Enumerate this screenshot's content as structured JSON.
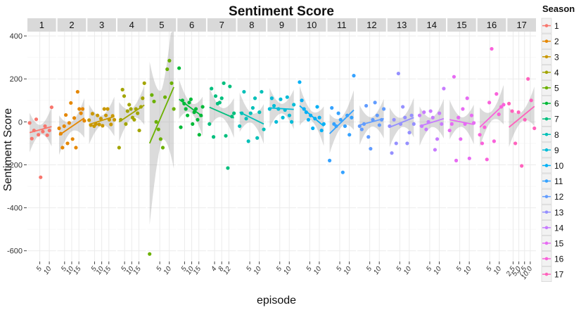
{
  "chart_data": {
    "type": "scatter",
    "title": "Sentiment Score",
    "xlabel": "episode",
    "ylabel": "Sentiment Score",
    "ylim": [
      -650,
      420
    ],
    "y_ticks": [
      400,
      200,
      0,
      -200,
      -400,
      -600
    ],
    "grid": true,
    "legend": {
      "title": "Season",
      "placement": "right"
    },
    "panels": [
      {
        "season": "1",
        "color": "#F8766D",
        "xlim": [
          0,
          13
        ],
        "x_ticks": [
          "5",
          "10"
        ],
        "points": [
          [
            1,
            -5
          ],
          [
            2,
            -78
          ],
          [
            3,
            -40
          ],
          [
            4,
            12
          ],
          [
            5,
            -60
          ],
          [
            6,
            -258
          ],
          [
            7,
            -45
          ],
          [
            8,
            -20
          ],
          [
            9,
            -62
          ],
          [
            10,
            -40
          ],
          [
            11,
            68
          ]
        ],
        "trend": [
          [
            1,
            -50
          ],
          [
            11,
            -22
          ]
        ]
      },
      {
        "season": "2",
        "color": "#E58700",
        "xlim": [
          0,
          17
        ],
        "x_ticks": [
          "5",
          "10",
          "15"
        ],
        "points": [
          [
            1,
            -30
          ],
          [
            2,
            -55
          ],
          [
            3,
            -120
          ],
          [
            4,
            -20
          ],
          [
            5,
            32
          ],
          [
            6,
            -100
          ],
          [
            7,
            -5
          ],
          [
            8,
            88
          ],
          [
            9,
            -80
          ],
          [
            10,
            18
          ],
          [
            11,
            -120
          ],
          [
            12,
            140
          ],
          [
            13,
            60
          ],
          [
            14,
            40
          ],
          [
            15,
            60
          ],
          [
            16,
            5
          ]
        ],
        "trend": [
          [
            1,
            -62
          ],
          [
            16,
            18
          ]
        ]
      },
      {
        "season": "3",
        "color": "#C99800",
        "xlim": [
          0,
          17
        ],
        "x_ticks": [
          "5",
          "10",
          "15"
        ],
        "points": [
          [
            1,
            8
          ],
          [
            2,
            -15
          ],
          [
            3,
            38
          ],
          [
            4,
            -20
          ],
          [
            5,
            -10
          ],
          [
            6,
            30
          ],
          [
            7,
            -12
          ],
          [
            8,
            15
          ],
          [
            9,
            -18
          ],
          [
            10,
            60
          ],
          [
            11,
            30
          ],
          [
            12,
            60
          ],
          [
            13,
            10
          ],
          [
            14,
            -12
          ],
          [
            15,
            28
          ],
          [
            16,
            10
          ]
        ],
        "trend": [
          [
            1,
            -12
          ],
          [
            16,
            25
          ]
        ]
      },
      {
        "season": "4",
        "color": "#A3A500",
        "xlim": [
          0,
          17
        ],
        "x_ticks": [
          "5",
          "10",
          "15"
        ],
        "points": [
          [
            1,
            -120
          ],
          [
            2,
            10
          ],
          [
            3,
            150
          ],
          [
            4,
            120
          ],
          [
            5,
            -10
          ],
          [
            6,
            50
          ],
          [
            7,
            80
          ],
          [
            8,
            60
          ],
          [
            9,
            20
          ],
          [
            10,
            10
          ],
          [
            11,
            60
          ],
          [
            12,
            40
          ],
          [
            13,
            -40
          ],
          [
            14,
            70
          ],
          [
            15,
            110
          ],
          [
            16,
            180
          ]
        ],
        "trend": [
          [
            1,
            0
          ],
          [
            16,
            78
          ]
        ]
      },
      {
        "season": "5",
        "color": "#6BB100",
        "xlim": [
          0,
          13
        ],
        "x_ticks": [
          "5",
          "10"
        ],
        "points": [
          [
            1,
            -615
          ],
          [
            2,
            125
          ],
          [
            3,
            95
          ],
          [
            4,
            0
          ],
          [
            5,
            -35
          ],
          [
            6,
            -80
          ],
          [
            7,
            -120
          ],
          [
            8,
            115
          ],
          [
            9,
            245
          ],
          [
            10,
            285
          ],
          [
            11,
            180
          ],
          [
            12,
            60
          ]
        ],
        "trend": [
          [
            1,
            -100
          ],
          [
            12,
            162
          ]
        ]
      },
      {
        "season": "6",
        "color": "#00BA38",
        "xlim": [
          0,
          17
        ],
        "x_ticks": [
          "5",
          "10",
          "15"
        ],
        "points": [
          [
            1,
            250
          ],
          [
            2,
            -25
          ],
          [
            3,
            100
          ],
          [
            4,
            85
          ],
          [
            5,
            60
          ],
          [
            6,
            30
          ],
          [
            7,
            90
          ],
          [
            8,
            105
          ],
          [
            9,
            -10
          ],
          [
            10,
            45
          ],
          [
            11,
            60
          ],
          [
            12,
            10
          ],
          [
            13,
            -60
          ],
          [
            14,
            30
          ],
          [
            15,
            70
          ]
        ],
        "trend": [
          [
            1,
            105
          ],
          [
            15,
            25
          ]
        ]
      },
      {
        "season": "7",
        "color": "#00BF7D",
        "xlim": [
          0,
          14
        ],
        "x_ticks": [
          "4",
          "8",
          "12"
        ],
        "points": [
          [
            1,
            -10
          ],
          [
            2,
            155
          ],
          [
            3,
            -70
          ],
          [
            4,
            120
          ],
          [
            5,
            85
          ],
          [
            6,
            90
          ],
          [
            7,
            110
          ],
          [
            8,
            180
          ],
          [
            9,
            -65
          ],
          [
            10,
            -215
          ],
          [
            11,
            165
          ],
          [
            12,
            25
          ],
          [
            13,
            40
          ]
        ],
        "trend": [
          [
            1,
            68
          ],
          [
            13,
            18
          ]
        ]
      },
      {
        "season": "8",
        "color": "#00C0B8",
        "xlim": [
          0,
          13
        ],
        "x_ticks": [
          "5",
          "10"
        ],
        "points": [
          [
            1,
            -20
          ],
          [
            2,
            40
          ],
          [
            3,
            140
          ],
          [
            4,
            15
          ],
          [
            5,
            -90
          ],
          [
            6,
            40
          ],
          [
            7,
            65
          ],
          [
            8,
            110
          ],
          [
            9,
            -75
          ],
          [
            10,
            45
          ],
          [
            11,
            140
          ],
          [
            12,
            -35
          ]
        ],
        "trend": [
          [
            1,
            45
          ],
          [
            12,
            -10
          ]
        ]
      },
      {
        "season": "9",
        "color": "#00BCD8",
        "xlim": [
          0,
          13
        ],
        "x_ticks": [
          "5",
          "10"
        ],
        "points": [
          [
            1,
            60
          ],
          [
            2,
            110
          ],
          [
            3,
            75
          ],
          [
            4,
            0
          ],
          [
            5,
            60
          ],
          [
            6,
            105
          ],
          [
            7,
            20
          ],
          [
            8,
            55
          ],
          [
            9,
            115
          ],
          [
            10,
            30
          ],
          [
            11,
            0
          ],
          [
            12,
            80
          ]
        ],
        "trend": [
          [
            1,
            65
          ],
          [
            12,
            58
          ]
        ]
      },
      {
        "season": "10",
        "color": "#00B0F6",
        "xlim": [
          0,
          13
        ],
        "x_ticks": [
          "5",
          "10"
        ],
        "points": [
          [
            1,
            185
          ],
          [
            2,
            100
          ],
          [
            3,
            60
          ],
          [
            4,
            45
          ],
          [
            5,
            10
          ],
          [
            6,
            30
          ],
          [
            7,
            -30
          ],
          [
            8,
            15
          ],
          [
            9,
            70
          ],
          [
            10,
            20
          ],
          [
            11,
            -40
          ],
          [
            12,
            -10
          ]
        ],
        "trend": [
          [
            1,
            75
          ],
          [
            12,
            -20
          ]
        ]
      },
      {
        "season": "11",
        "color": "#35A2FF",
        "xlim": [
          0,
          13
        ],
        "x_ticks": [
          "5",
          "10"
        ],
        "points": [
          [
            1,
            -180
          ],
          [
            2,
            65
          ],
          [
            3,
            -10
          ],
          [
            4,
            -20
          ],
          [
            5,
            40
          ],
          [
            6,
            10
          ],
          [
            7,
            -235
          ],
          [
            8,
            -20
          ],
          [
            9,
            30
          ],
          [
            10,
            -60
          ],
          [
            11,
            20
          ],
          [
            12,
            215
          ]
        ],
        "trend": [
          [
            1,
            -55
          ],
          [
            12,
            55
          ]
        ]
      },
      {
        "season": "12",
        "color": "#619CFF",
        "xlim": [
          0,
          13
        ],
        "x_ticks": [
          "5",
          "10"
        ],
        "points": [
          [
            1,
            -20
          ],
          [
            2,
            -35
          ],
          [
            3,
            -10
          ],
          [
            4,
            75
          ],
          [
            5,
            -70
          ],
          [
            6,
            -125
          ],
          [
            7,
            10
          ],
          [
            8,
            90
          ],
          [
            9,
            30
          ],
          [
            10,
            -15
          ],
          [
            11,
            10
          ],
          [
            12,
            60
          ]
        ],
        "trend": [
          [
            1,
            -15
          ],
          [
            12,
            15
          ]
        ]
      },
      {
        "season": "13",
        "color": "#9590FF",
        "xlim": [
          0,
          13
        ],
        "x_ticks": [
          "5",
          "10"
        ],
        "points": [
          [
            1,
            -20
          ],
          [
            2,
            -145
          ],
          [
            3,
            10
          ],
          [
            4,
            -100
          ],
          [
            5,
            225
          ],
          [
            6,
            -10
          ],
          [
            7,
            70
          ],
          [
            8,
            20
          ],
          [
            9,
            -100
          ],
          [
            10,
            -50
          ],
          [
            11,
            30
          ],
          [
            12,
            -10
          ]
        ],
        "trend": [
          [
            1,
            -25
          ],
          [
            12,
            20
          ]
        ]
      },
      {
        "season": "14",
        "color": "#C77CFF",
        "xlim": [
          0,
          13
        ],
        "x_ticks": [
          "5",
          "10"
        ],
        "points": [
          [
            1,
            30
          ],
          [
            2,
            -20
          ],
          [
            3,
            45
          ],
          [
            4,
            -35
          ],
          [
            5,
            0
          ],
          [
            6,
            50
          ],
          [
            7,
            20
          ],
          [
            8,
            -130
          ],
          [
            9,
            -80
          ],
          [
            10,
            40
          ],
          [
            11,
            -10
          ],
          [
            12,
            155
          ]
        ],
        "trend": [
          [
            1,
            -20
          ],
          [
            12,
            15
          ]
        ]
      },
      {
        "season": "15",
        "color": "#E76BF3",
        "xlim": [
          0,
          13
        ],
        "x_ticks": [
          "5",
          "10"
        ],
        "points": [
          [
            1,
            -40
          ],
          [
            2,
            -10
          ],
          [
            3,
            210
          ],
          [
            4,
            -180
          ],
          [
            5,
            20
          ],
          [
            6,
            -80
          ],
          [
            7,
            60
          ],
          [
            8,
            -10
          ],
          [
            9,
            110
          ],
          [
            10,
            -170
          ],
          [
            11,
            30
          ],
          [
            12,
            -5
          ]
        ],
        "trend": [
          [
            1,
            10
          ],
          [
            12,
            -12
          ]
        ]
      },
      {
        "season": "16",
        "color": "#FA62DB",
        "xlim": [
          0,
          12
        ],
        "x_ticks": [
          "5",
          "10"
        ],
        "points": [
          [
            1,
            -60
          ],
          [
            2,
            -100
          ],
          [
            3,
            -25
          ],
          [
            4,
            -175
          ],
          [
            5,
            90
          ],
          [
            6,
            340
          ],
          [
            7,
            -90
          ],
          [
            8,
            130
          ],
          [
            9,
            35
          ],
          [
            10,
            70
          ],
          [
            11,
            80
          ]
        ],
        "trend": [
          [
            1,
            -25
          ],
          [
            11,
            80
          ]
        ]
      },
      {
        "season": "17",
        "color": "#FF62BC",
        "xlim": [
          1.5,
          10.5
        ],
        "x_ticks": [
          "2.5",
          "5.0",
          "7.5",
          "10.0"
        ],
        "points": [
          [
            2,
            85
          ],
          [
            3,
            50
          ],
          [
            4,
            -100
          ],
          [
            5,
            45
          ],
          [
            6,
            -205
          ],
          [
            7,
            10
          ],
          [
            8,
            200
          ],
          [
            9,
            100
          ],
          [
            10,
            -30
          ]
        ],
        "trend": [
          [
            2,
            -25
          ],
          [
            10,
            72
          ]
        ]
      }
    ]
  }
}
